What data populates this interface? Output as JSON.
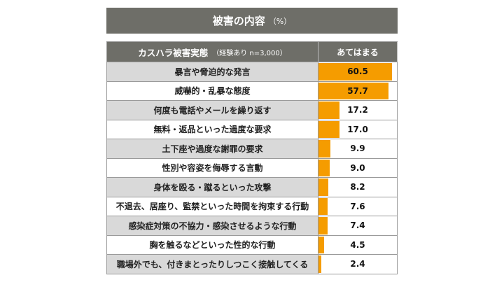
{
  "title": "被害の内容",
  "title_unit": "（%）",
  "header": {
    "category_label": "カスハラ被害実態",
    "category_sub": "（経験あり n=3,000）",
    "value_label": "あてはまる"
  },
  "colors": {
    "bar": "#f59c00",
    "header_bg": "#6e6e68",
    "shade_row": "#d9d9d9"
  },
  "chart_data": {
    "type": "bar",
    "orientation": "horizontal",
    "title": "被害の内容",
    "unit": "%",
    "ylim": [
      0,
      60.5
    ],
    "categories": [
      "暴言や脅迫的な発言",
      "威嚇的・乱暴な態度",
      "何度も電話やメールを繰り返す",
      "無料・返品といった過度な要求",
      "土下座や過度な謝罪の要求",
      "性別や容姿を侮辱する言動",
      "身体を殴る・蹴るといった攻撃",
      "不退去、居座り、監禁といった時間を拘束する行動",
      "感染症対策の不協力・感染させるような行動",
      "胸を触るなどといった性的な行動",
      "職場外でも、付きまとったりしつこく接触してくる"
    ],
    "values": [
      60.5,
      57.7,
      17.2,
      17.0,
      9.9,
      9.0,
      8.2,
      7.6,
      7.4,
      4.5,
      2.4
    ],
    "value_labels": [
      "60.5",
      "57.7",
      "17.2",
      "17.0",
      "9.9",
      "9.0",
      "8.2",
      "7.6",
      "7.4",
      "4.5",
      "2.4"
    ]
  }
}
